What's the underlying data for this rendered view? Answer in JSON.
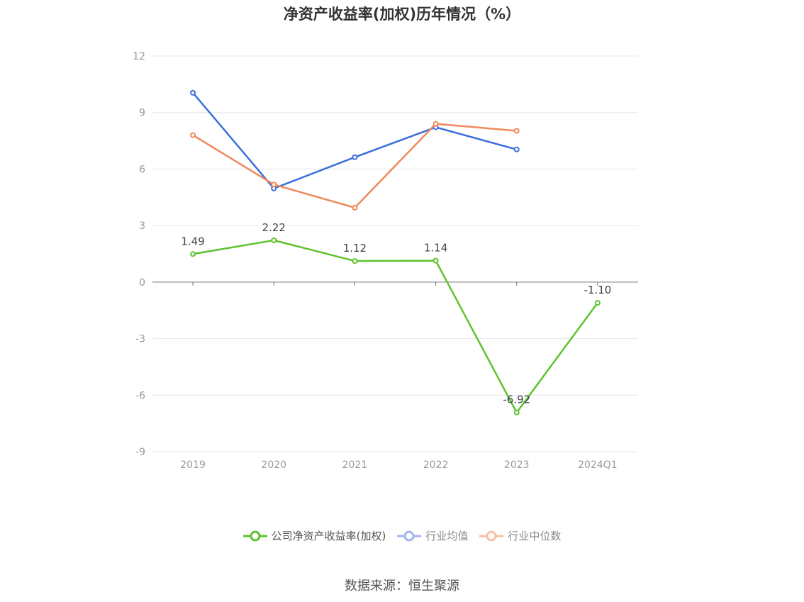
{
  "title": "净资产收益率(加权)历年情况（%）",
  "source_text": "数据来源：恒生聚源",
  "colors": {
    "company": "#5ec32e",
    "average": "#3b6fdc",
    "median": "#f0885a",
    "grid": "#e3e6ef",
    "axis": "#6e7079",
    "tick_text": "#999999",
    "label_text": "#444444"
  },
  "chart_data": {
    "type": "line",
    "title": "净资产收益率(加权)历年情况（%）",
    "categories": [
      "2019",
      "2020",
      "2021",
      "2022",
      "2023",
      "2024Q1"
    ],
    "ylim": [
      -9,
      12
    ],
    "yticks": [
      -9,
      -6,
      -3,
      0,
      3,
      6,
      9,
      12
    ],
    "grid": true,
    "legend_position": "bottom",
    "series": [
      {
        "name": "公司净资产收益率(加权)",
        "values": [
          1.49,
          2.22,
          1.12,
          1.14,
          -6.92,
          -1.1
        ],
        "labels": [
          "1.49",
          "2.22",
          "1.12",
          "1.14",
          "-6.92",
          "-1.10"
        ],
        "color": "#5ec32e"
      },
      {
        "name": "行业均值",
        "values": [
          10.05,
          4.97,
          6.63,
          8.22,
          7.04,
          null
        ],
        "color": "#3b6fdc"
      },
      {
        "name": "行业中位数",
        "values": [
          7.8,
          5.18,
          3.95,
          8.4,
          8.03,
          null
        ],
        "color": "#f0885a"
      }
    ]
  }
}
